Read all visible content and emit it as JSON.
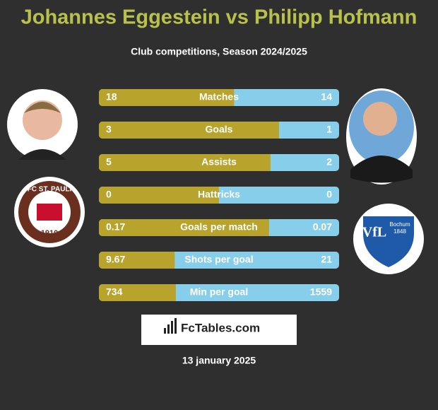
{
  "header": {
    "title": "Johannes Eggestein vs Philipp Hofmann",
    "subtitle": "Club competitions, Season 2024/2025"
  },
  "left_club": {
    "name": "FC ST. PAULI",
    "year": "1910"
  },
  "right_club": {
    "name": "VfL",
    "city": "Bochum",
    "year": "1848"
  },
  "rows": [
    {
      "label": "Matches",
      "left": 18,
      "right": 14
    },
    {
      "label": "Goals",
      "left": 3,
      "right": 1
    },
    {
      "label": "Assists",
      "left": 5,
      "right": 2
    },
    {
      "label": "Hattricks",
      "left": 0,
      "right": 0
    },
    {
      "label": "Goals per match",
      "left": 0.17,
      "right": 0.07
    },
    {
      "label": "Shots per goal",
      "left": 9.67,
      "right": 21
    },
    {
      "label": "Min per goal",
      "left": 734,
      "right": 1559
    }
  ],
  "footer": {
    "brand": "FcTables.com",
    "date": "13 january 2025"
  }
}
